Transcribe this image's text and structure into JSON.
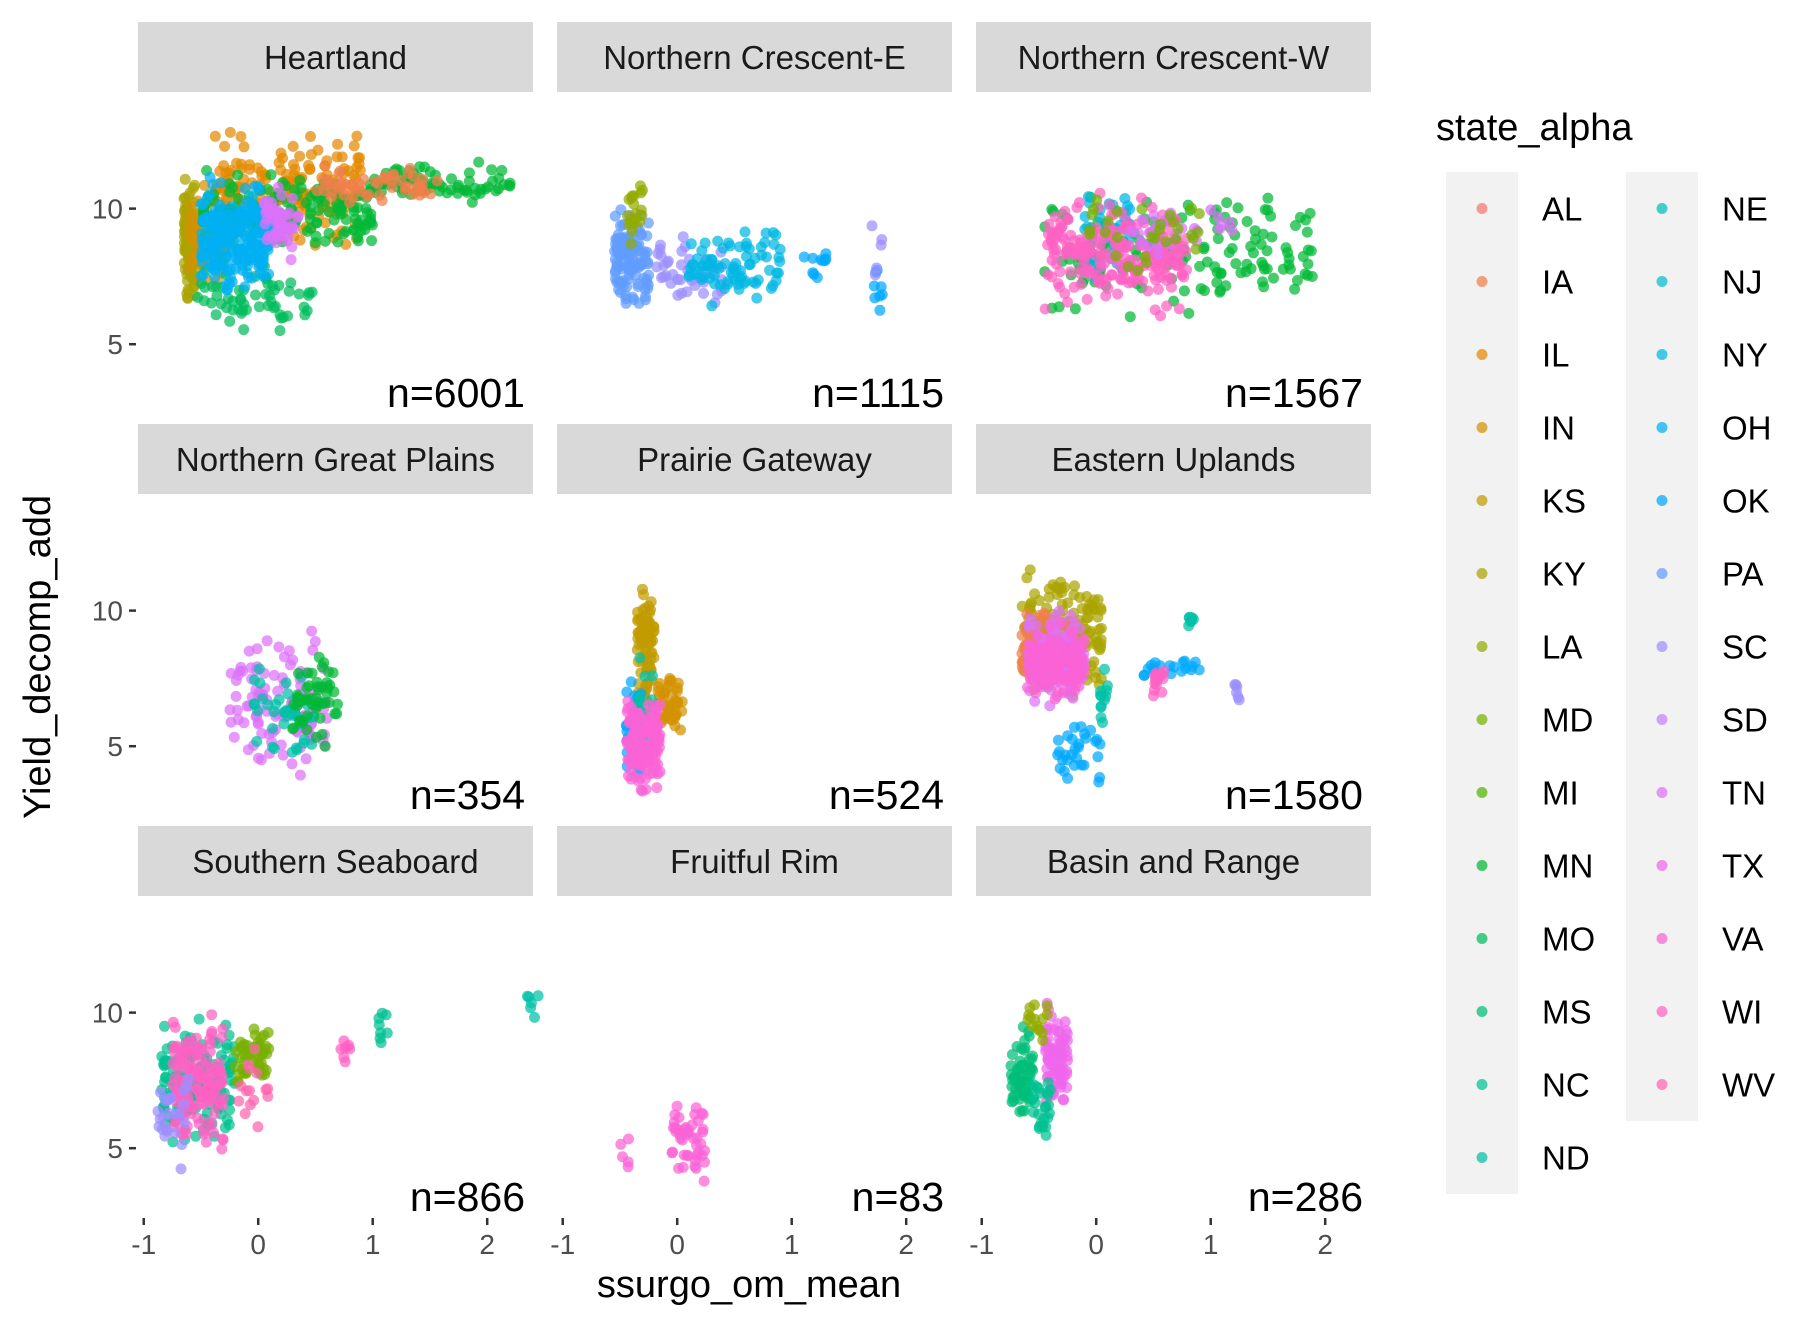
{
  "chart_data": {
    "type": "scatter",
    "facet_layout": "3x3",
    "xlabel": "ssurgo_om_mean",
    "ylabel": "Yield_decomp_add",
    "xlim": [
      -1.05,
      2.4
    ],
    "ylim": [
      2.5,
      14.3
    ],
    "x_ticks": [
      -1,
      0,
      1,
      2
    ],
    "x_tick_labels": [
      "-1",
      "0",
      "1",
      "2"
    ],
    "y_ticks": [
      5,
      10
    ],
    "y_tick_labels": [
      "5",
      "10"
    ],
    "grid": false,
    "legend": {
      "title": "state_alpha",
      "position": "right",
      "columns": 2,
      "entries": [
        "AL",
        "IA",
        "IL",
        "IN",
        "KS",
        "KY",
        "LA",
        "MD",
        "MI",
        "MN",
        "MO",
        "MS",
        "NC",
        "ND",
        "NE",
        "NJ",
        "NY",
        "OH",
        "OK",
        "PA",
        "SC",
        "SD",
        "TN",
        "TX",
        "VA",
        "WI",
        "WV"
      ]
    },
    "state_colors": {
      "AL": "#F8766D",
      "IA": "#EF7F49",
      "IL": "#E38900",
      "IN": "#D39200",
      "KS": "#C09B00",
      "KY": "#AAA300",
      "LA": "#93AA00",
      "MD": "#77B000",
      "MI": "#50B500",
      "MN": "#00B935",
      "MO": "#00BC5B",
      "MS": "#00BE78",
      "NC": "#00C091",
      "ND": "#00C0A8",
      "NE": "#00BEBE",
      "NJ": "#00BCD1",
      "NY": "#00B7E3",
      "OH": "#00B0F3",
      "OK": "#00A7FF",
      "PA": "#619CFF",
      "SC": "#9B8FFF",
      "SD": "#C27FFF",
      "TN": "#DC71FA",
      "TX": "#EE67EB",
      "VA": "#FA62D5",
      "WI": "#FF61C3",
      "WV": "#FF64AE"
    },
    "panels": [
      {
        "name": "Heartland",
        "n_label": "n=6001",
        "clusters": [
          {
            "state": "KY",
            "x": [
              -0.65,
              -0.55
            ],
            "y": [
              6.0,
              11.5
            ],
            "n": 120
          },
          {
            "state": "IN",
            "x": [
              -0.6,
              -0.3
            ],
            "y": [
              6.5,
              11.5
            ],
            "n": 100
          },
          {
            "state": "IL",
            "x": [
              -0.4,
              0.9
            ],
            "y": [
              8.0,
              13.2
            ],
            "n": 190
          },
          {
            "state": "MN",
            "x": [
              -0.5,
              1.0
            ],
            "y": [
              8.0,
              11.8
            ],
            "n": 170
          },
          {
            "state": "MO",
            "x": [
              -0.55,
              0.5
            ],
            "y": [
              5.2,
              8.5
            ],
            "n": 60
          },
          {
            "state": "MN",
            "x": [
              1.0,
              2.2
            ],
            "y": [
              10.0,
              11.8
            ],
            "n": 70
          },
          {
            "state": "IA",
            "x": [
              0.5,
              1.6
            ],
            "y": [
              10.0,
              11.8
            ],
            "n": 60
          },
          {
            "state": "OH",
            "x": [
              -0.5,
              0.1
            ],
            "y": [
              6.5,
              11.5
            ],
            "n": 240
          },
          {
            "state": "TN",
            "x": [
              0.05,
              0.35
            ],
            "y": [
              8.0,
              11.0
            ],
            "n": 50
          }
        ]
      },
      {
        "name": "Northern Crescent-E",
        "n_label": "n=1115",
        "clusters": [
          {
            "state": "PA",
            "x": [
              -0.55,
              -0.25
            ],
            "y": [
              5.5,
              10.5
            ],
            "n": 130
          },
          {
            "state": "SC",
            "x": [
              -0.2,
              0.4
            ],
            "y": [
              5.8,
              9.5
            ],
            "n": 40
          },
          {
            "state": "LA",
            "x": [
              -0.45,
              -0.3
            ],
            "y": [
              8.0,
              11.8
            ],
            "n": 20
          },
          {
            "state": "NY",
            "x": [
              0.1,
              0.9
            ],
            "y": [
              6.0,
              9.8
            ],
            "n": 80
          },
          {
            "state": "OK",
            "x": [
              1.1,
              1.3
            ],
            "y": [
              7.0,
              8.8
            ],
            "n": 10
          },
          {
            "state": "OK",
            "x": [
              1.7,
              1.8
            ],
            "y": [
              6.0,
              8.4
            ],
            "n": 8
          },
          {
            "state": "SC",
            "x": [
              1.7,
              1.8
            ],
            "y": [
              6.0,
              10.3
            ],
            "n": 5
          }
        ]
      },
      {
        "name": "Northern Crescent-W",
        "n_label": "n=1567",
        "clusters": [
          {
            "state": "MN",
            "x": [
              -0.45,
              1.9
            ],
            "y": [
              5.5,
              11.5
            ],
            "n": 140
          },
          {
            "state": "NY",
            "x": [
              -0.1,
              0.3
            ],
            "y": [
              7.0,
              11.2
            ],
            "n": 40
          },
          {
            "state": "WI",
            "x": [
              -0.45,
              0.8
            ],
            "y": [
              5.8,
              10.8
            ],
            "n": 230
          },
          {
            "state": "TN",
            "x": [
              0.3,
              1.2
            ],
            "y": [
              8.0,
              10.5
            ],
            "n": 25
          },
          {
            "state": "MD",
            "x": [
              -0.1,
              0.9
            ],
            "y": [
              7.0,
              10.8
            ],
            "n": 30
          }
        ]
      },
      {
        "name": "Northern Great Plains",
        "n_label": "n=354",
        "clusters": [
          {
            "state": "TN",
            "x": [
              -0.3,
              0.6
            ],
            "y": [
              3.0,
              10.2
            ],
            "n": 110
          },
          {
            "state": "ND",
            "x": [
              -0.05,
              0.5
            ],
            "y": [
              3.8,
              8.5
            ],
            "n": 40
          },
          {
            "state": "MN",
            "x": [
              0.3,
              0.7
            ],
            "y": [
              4.5,
              8.8
            ],
            "n": 50
          }
        ]
      },
      {
        "name": "Prairie Gateway",
        "n_label": "n=524",
        "clusters": [
          {
            "state": "KS",
            "x": [
              -0.35,
              -0.2
            ],
            "y": [
              5.5,
              11.8
            ],
            "n": 90
          },
          {
            "state": "IN",
            "x": [
              -0.2,
              0.05
            ],
            "y": [
              5.0,
              8.0
            ],
            "n": 50
          },
          {
            "state": "OK",
            "x": [
              -0.45,
              -0.3
            ],
            "y": [
              3.5,
              8.0
            ],
            "n": 35
          },
          {
            "state": "ND",
            "x": [
              -0.35,
              -0.2
            ],
            "y": [
              4.0,
              9.0
            ],
            "n": 25
          },
          {
            "state": "VA",
            "x": [
              -0.45,
              -0.15
            ],
            "y": [
              2.5,
              7.5
            ],
            "n": 140
          }
        ]
      },
      {
        "name": "Eastern Uplands",
        "n_label": "n=1580",
        "clusters": [
          {
            "state": "KY",
            "x": [
              -0.65,
              0.05
            ],
            "y": [
              6.5,
              11.8
            ],
            "n": 160
          },
          {
            "state": "IA",
            "x": [
              -0.65,
              -0.2
            ],
            "y": [
              6.5,
              10.5
            ],
            "n": 120
          },
          {
            "state": "TN",
            "x": [
              -0.6,
              -0.1
            ],
            "y": [
              6.0,
              10.5
            ],
            "n": 140
          },
          {
            "state": "VA",
            "x": [
              -0.6,
              -0.1
            ],
            "y": [
              6.0,
              10.0
            ],
            "n": 120
          },
          {
            "state": "OK",
            "x": [
              -0.35,
              0.05
            ],
            "y": [
              3.0,
              6.5
            ],
            "n": 30
          },
          {
            "state": "ND",
            "x": [
              0.0,
              0.1
            ],
            "y": [
              5.5,
              8.0
            ],
            "n": 12
          },
          {
            "state": "OK",
            "x": [
              0.4,
              0.9
            ],
            "y": [
              7.0,
              8.5
            ],
            "n": 20
          },
          {
            "state": "WI",
            "x": [
              0.5,
              0.6
            ],
            "y": [
              6.5,
              8.5
            ],
            "n": 15
          },
          {
            "state": "ND",
            "x": [
              0.8,
              0.85
            ],
            "y": [
              9.2,
              10.0
            ],
            "n": 8
          },
          {
            "state": "SC",
            "x": [
              1.2,
              1.25
            ],
            "y": [
              6.0,
              8.0
            ],
            "n": 6
          }
        ]
      },
      {
        "name": "Southern Seaboard",
        "n_label": "n=866",
        "clusters": [
          {
            "state": "NC",
            "x": [
              -0.85,
              -0.2
            ],
            "y": [
              4.5,
              10.2
            ],
            "n": 150
          },
          {
            "state": "WI",
            "x": [
              -0.75,
              -0.3
            ],
            "y": [
              4.5,
              10.5
            ],
            "n": 140
          },
          {
            "state": "MD",
            "x": [
              -0.2,
              0.1
            ],
            "y": [
              7.0,
              10.0
            ],
            "n": 50
          },
          {
            "state": "SC",
            "x": [
              -0.9,
              -0.6
            ],
            "y": [
              3.8,
              8.5
            ],
            "n": 25
          },
          {
            "state": "WV",
            "x": [
              -0.2,
              0.1
            ],
            "y": [
              5.0,
              9.5
            ],
            "n": 15
          },
          {
            "state": "WI",
            "x": [
              0.7,
              0.8
            ],
            "y": [
              7.5,
              10.0
            ],
            "n": 8
          },
          {
            "state": "NC",
            "x": [
              1.05,
              1.15
            ],
            "y": [
              8.3,
              10.8
            ],
            "n": 8
          },
          {
            "state": "ND",
            "x": [
              2.35,
              2.45
            ],
            "y": [
              9.2,
              11.6
            ],
            "n": 6
          }
        ]
      },
      {
        "name": "Fruitful Rim",
        "n_label": "n=83",
        "clusters": [
          {
            "state": "VA",
            "x": [
              -0.05,
              0.25
            ],
            "y": [
              3.2,
              7.2
            ],
            "n": 45
          },
          {
            "state": "VA",
            "x": [
              -0.5,
              -0.4
            ],
            "y": [
              3.6,
              5.5
            ],
            "n": 5
          }
        ]
      },
      {
        "name": "Basin and Range",
        "n_label": "n=286",
        "clusters": [
          {
            "state": "MS",
            "x": [
              -0.75,
              -0.55
            ],
            "y": [
              5.5,
              10.0
            ],
            "n": 60
          },
          {
            "state": "TX",
            "x": [
              -0.45,
              -0.25
            ],
            "y": [
              6.0,
              10.8
            ],
            "n": 80
          },
          {
            "state": "LA",
            "x": [
              -0.6,
              -0.4
            ],
            "y": [
              8.5,
              10.8
            ],
            "n": 15
          },
          {
            "state": "NC",
            "x": [
              -0.55,
              -0.4
            ],
            "y": [
              5.0,
              8.5
            ],
            "n": 25
          }
        ]
      }
    ]
  }
}
